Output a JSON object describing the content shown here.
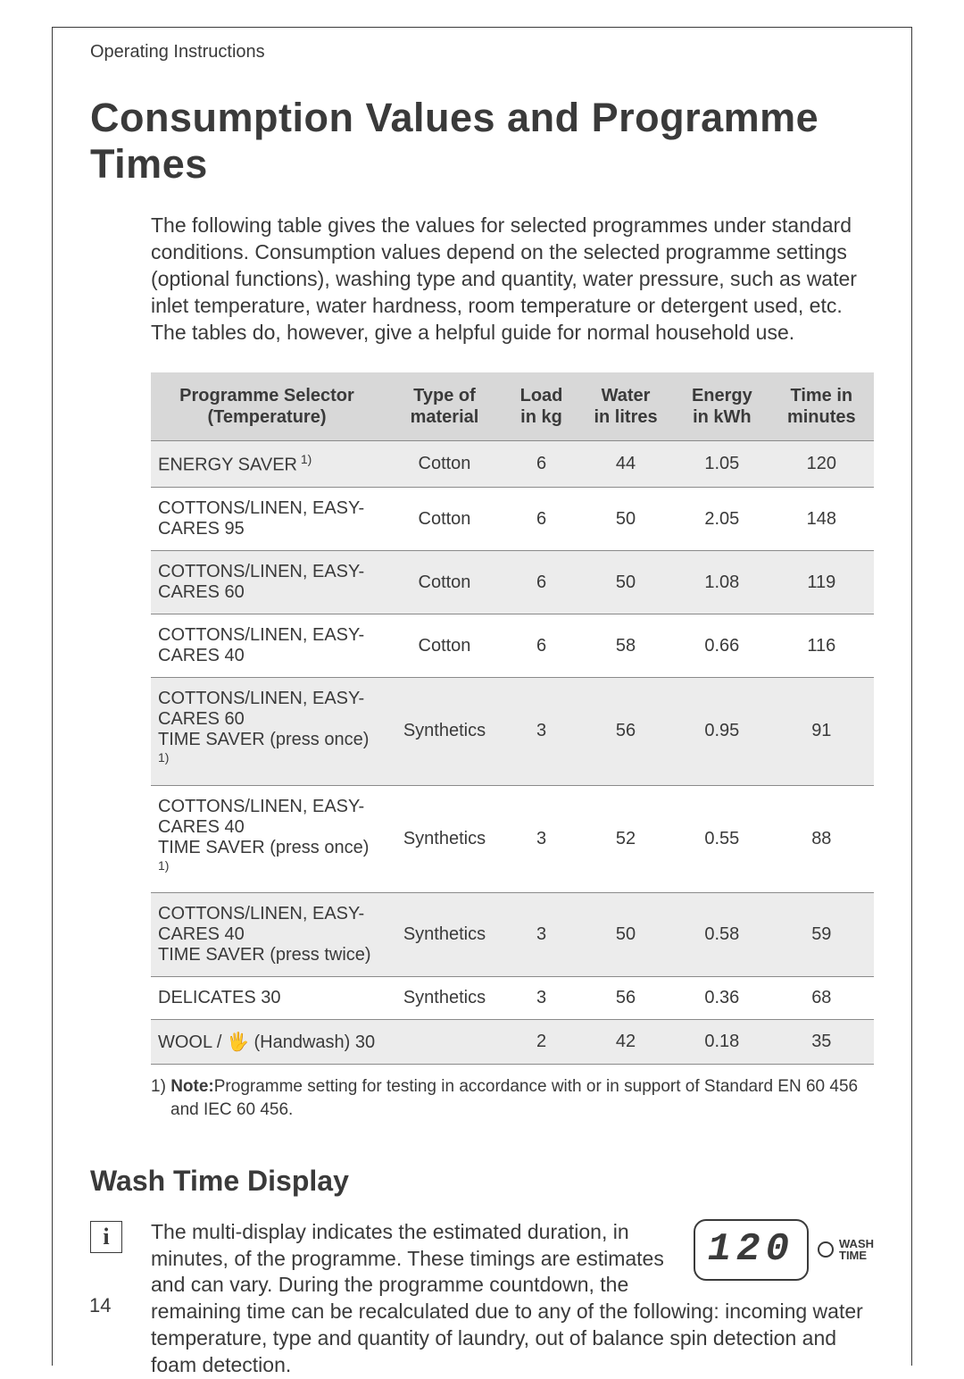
{
  "runningHeader": "Operating Instructions",
  "mainTitle": "Consumption Values and Programme Times",
  "introParagraph": "The following table gives the values for selected programmes under standard conditions. Consumption values depend on the selected programme settings (optional functions), washing type and quantity, water pressure, such as water inlet temperature, water hardness, room temperature or detergent used, etc. The tables do, however, give a helpful guide for normal household use.",
  "table": {
    "headers": {
      "col0a": "Programme Selector",
      "col0b": "(Temperature)",
      "col1a": "Type of",
      "col1b": "material",
      "col2a": "Load",
      "col2b": "in kg",
      "col3a": "Water",
      "col3b": "in litres",
      "col4a": "Energy",
      "col4b": "in kWh",
      "col5a": "Time in",
      "col5b": "minutes"
    },
    "rows": [
      {
        "name": "ENERGY SAVER",
        "sup": "1)",
        "material": "Cotton",
        "load": "6",
        "water": "44",
        "energy": "1.05",
        "time": "120"
      },
      {
        "name": "COTTONS/LINEN, EASY-CARES 95",
        "sup": "",
        "material": "Cotton",
        "load": "6",
        "water": "50",
        "energy": "2.05",
        "time": "148"
      },
      {
        "name": "COTTONS/LINEN, EASY-CARES 60",
        "sup": "",
        "material": "Cotton",
        "load": "6",
        "water": "50",
        "energy": "1.08",
        "time": "119"
      },
      {
        "name": "COTTONS/LINEN, EASY-CARES 40",
        "sup": "",
        "material": "Cotton",
        "load": "6",
        "water": "58",
        "energy": "0.66",
        "time": "116"
      },
      {
        "name": "COTTONS/LINEN, EASY-CARES 60\nTIME SAVER (press once)",
        "sup": "1)",
        "material": "Synthetics",
        "load": "3",
        "water": "56",
        "energy": "0.95",
        "time": "91"
      },
      {
        "name": "COTTONS/LINEN, EASY-CARES 40\nTIME SAVER (press once)",
        "sup": "1)",
        "material": "Synthetics",
        "load": "3",
        "water": "52",
        "energy": "0.55",
        "time": "88"
      },
      {
        "name": "COTTONS/LINEN, EASY-CARES 40\nTIME SAVER (press twice)",
        "sup": "",
        "material": "Synthetics",
        "load": "3",
        "water": "50",
        "energy": "0.58",
        "time": "59"
      },
      {
        "name": "DELICATES 30",
        "sup": "",
        "material": "Synthetics",
        "load": "3",
        "water": "56",
        "energy": "0.36",
        "time": "68"
      },
      {
        "name": "WOOL / 🖐 (Handwash) 30",
        "sup": "",
        "material": "",
        "load": "2",
        "water": "42",
        "energy": "0.18",
        "time": "35"
      }
    ]
  },
  "footnote": {
    "label": "1)",
    "bold": "Note:",
    "text": "Programme setting for testing in accordance with or in support of Standard EN 60 456 and IEC 60 456."
  },
  "washTime": {
    "title": "Wash Time Display",
    "infoIcon": "i",
    "lcdValue": "120",
    "ledLabel1": "WASH",
    "ledLabel2": "TIME",
    "paragraph": "The multi-display indicates the estimated duration, in minutes, of the programme.\nThese timings are estimates and can vary.\nDuring the programme countdown, the remaining time can be recalculated due to any of the following:\nincoming water temperature, type and quantity of laundry, out of balance spin detection and foam detection."
  },
  "pageNumber": "14",
  "colors": {
    "text": "#3a3a3a",
    "headerBg": "#d8d8d8",
    "rowOdd": "#ececec",
    "rowEven": "#ffffff",
    "border": "#8a8a8a"
  }
}
